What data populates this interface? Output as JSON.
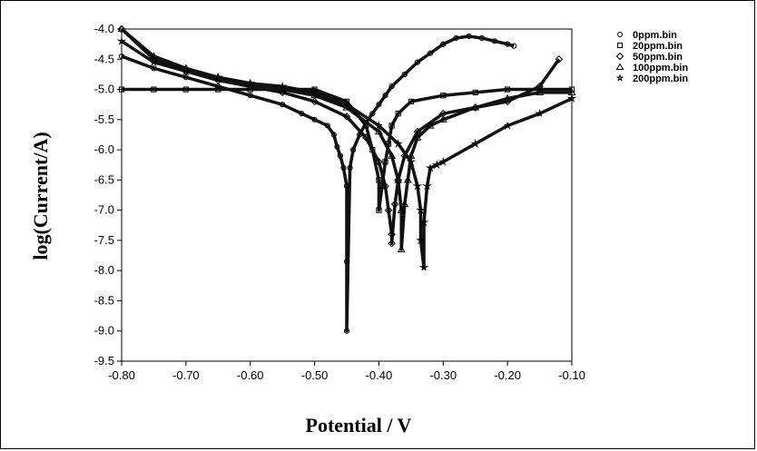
{
  "chart_data": {
    "type": "scatter",
    "xlabel": "Potential / V",
    "ylabel": "log(Current/A)",
    "xlim": [
      -0.8,
      -0.1
    ],
    "ylim": [
      -9.5,
      -4.0
    ],
    "xticks": [
      -0.8,
      -0.7,
      -0.6,
      -0.5,
      -0.4,
      -0.3,
      -0.2,
      -0.1
    ],
    "yticks": [
      -4.0,
      -4.5,
      -5.0,
      -5.5,
      -6.0,
      -6.5,
      -7.0,
      -7.5,
      -8.0,
      -8.5,
      -9.0,
      -9.5
    ],
    "xtick_labels": [
      "-0.80",
      "-0.70",
      "-0.60",
      "-0.50",
      "-0.40",
      "-0.30",
      "-0.20",
      "-0.10"
    ],
    "ytick_labels": [
      "-4.0",
      "-4.5",
      "-5.0",
      "-5.5",
      "-6.0",
      "-6.5",
      "-7.0",
      "-7.5",
      "-8.0",
      "-8.5",
      "-9.0",
      "-9.5"
    ],
    "grid": false,
    "legend_position": "top-right",
    "series": [
      {
        "name": "0ppm.bin",
        "marker": "circle",
        "x": [
          -0.8,
          -0.75,
          -0.7,
          -0.65,
          -0.6,
          -0.55,
          -0.52,
          -0.5,
          -0.48,
          -0.47,
          -0.465,
          -0.46,
          -0.455,
          -0.45,
          -0.45,
          -0.45,
          -0.445,
          -0.44,
          -0.43,
          -0.42,
          -0.41,
          -0.4,
          -0.39,
          -0.38,
          -0.36,
          -0.34,
          -0.32,
          -0.3,
          -0.28,
          -0.26,
          -0.24,
          -0.22,
          -0.2,
          -0.19
        ],
        "y": [
          -4.45,
          -4.65,
          -4.8,
          -4.95,
          -5.1,
          -5.25,
          -5.4,
          -5.5,
          -5.6,
          -5.75,
          -5.95,
          -6.1,
          -6.3,
          -6.6,
          -7.85,
          -9.0,
          -6.3,
          -6.0,
          -5.75,
          -5.55,
          -5.4,
          -5.25,
          -5.1,
          -4.95,
          -4.75,
          -4.55,
          -4.4,
          -4.25,
          -4.15,
          -4.12,
          -4.15,
          -4.2,
          -4.25,
          -4.28
        ]
      },
      {
        "name": "20ppm.bin",
        "marker": "square",
        "x": [
          -0.8,
          -0.75,
          -0.7,
          -0.65,
          -0.6,
          -0.55,
          -0.5,
          -0.45,
          -0.42,
          -0.41,
          -0.4,
          -0.4,
          -0.395,
          -0.39,
          -0.385,
          -0.38,
          -0.37,
          -0.35,
          -0.3,
          -0.25,
          -0.2,
          -0.15,
          -0.1
        ],
        "y": [
          -5.0,
          -5.0,
          -5.0,
          -5.0,
          -5.0,
          -5.0,
          -5.0,
          -5.2,
          -5.6,
          -6.0,
          -6.5,
          -7.0,
          -6.6,
          -6.2,
          -5.9,
          -5.6,
          -5.4,
          -5.2,
          -5.1,
          -5.05,
          -5.0,
          -5.0,
          -5.0
        ]
      },
      {
        "name": "50ppm.bin",
        "marker": "diamond",
        "x": [
          -0.8,
          -0.75,
          -0.7,
          -0.65,
          -0.6,
          -0.55,
          -0.5,
          -0.45,
          -0.42,
          -0.4,
          -0.39,
          -0.385,
          -0.38,
          -0.38,
          -0.375,
          -0.37,
          -0.36,
          -0.34,
          -0.3,
          -0.25,
          -0.2,
          -0.15,
          -0.12
        ],
        "y": [
          -4.0,
          -4.5,
          -4.7,
          -4.85,
          -4.95,
          -5.05,
          -5.2,
          -5.45,
          -5.8,
          -6.2,
          -6.6,
          -7.0,
          -7.4,
          -7.55,
          -6.9,
          -6.5,
          -6.1,
          -5.7,
          -5.4,
          -5.3,
          -5.2,
          -4.95,
          -4.5
        ]
      },
      {
        "name": "100ppm.bin",
        "marker": "triangle",
        "x": [
          -0.8,
          -0.75,
          -0.7,
          -0.65,
          -0.6,
          -0.55,
          -0.5,
          -0.45,
          -0.4,
          -0.38,
          -0.37,
          -0.365,
          -0.365,
          -0.36,
          -0.355,
          -0.35,
          -0.34,
          -0.32,
          -0.3,
          -0.25,
          -0.2,
          -0.15,
          -0.1
        ],
        "y": [
          -4.0,
          -4.45,
          -4.65,
          -4.8,
          -4.9,
          -5.0,
          -5.1,
          -5.3,
          -5.7,
          -6.1,
          -6.5,
          -7.0,
          -7.65,
          -6.9,
          -6.5,
          -6.1,
          -5.8,
          -5.6,
          -5.5,
          -5.3,
          -5.15,
          -5.05,
          -5.05
        ]
      },
      {
        "name": "200ppm.bin",
        "marker": "star",
        "x": [
          -0.8,
          -0.75,
          -0.7,
          -0.65,
          -0.6,
          -0.55,
          -0.5,
          -0.45,
          -0.4,
          -0.37,
          -0.35,
          -0.34,
          -0.335,
          -0.335,
          -0.33,
          -0.33,
          -0.325,
          -0.32,
          -0.31,
          -0.3,
          -0.25,
          -0.2,
          -0.15,
          -0.1
        ],
        "y": [
          -4.2,
          -4.55,
          -4.7,
          -4.8,
          -4.9,
          -4.95,
          -5.05,
          -5.25,
          -5.6,
          -5.9,
          -6.2,
          -6.6,
          -7.0,
          -7.5,
          -7.95,
          -7.2,
          -6.6,
          -6.3,
          -6.25,
          -6.2,
          -5.9,
          -5.6,
          -5.4,
          -5.15
        ]
      }
    ]
  }
}
